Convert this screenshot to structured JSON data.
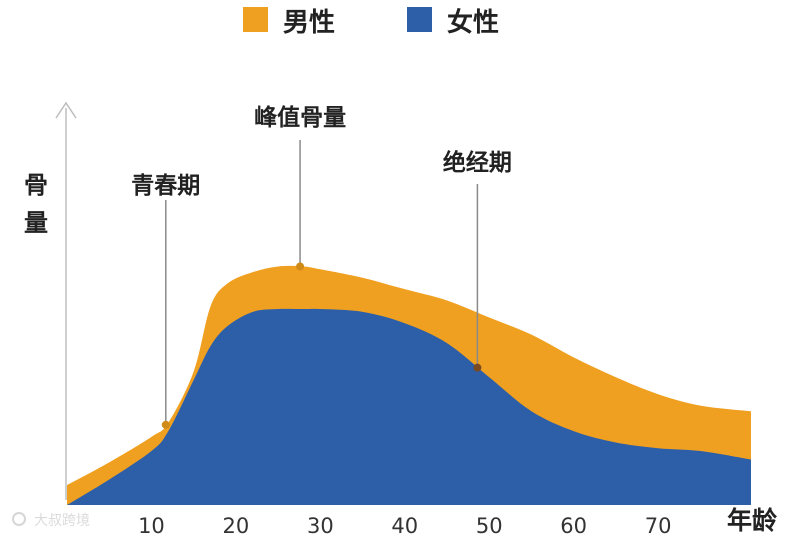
{
  "chart_data": {
    "type": "area",
    "title": "",
    "ylabel": "骨量",
    "xlabel": "年龄",
    "x_ticks": [
      10,
      20,
      30,
      40,
      50,
      60,
      70
    ],
    "xlim": [
      0,
      81
    ],
    "ylim": [
      0,
      100
    ],
    "legend": {
      "placement": "top",
      "entries": [
        {
          "label": "男性",
          "color": "#f0a020"
        },
        {
          "label": "女性",
          "color": "#2d5fa8"
        }
      ]
    },
    "series": [
      {
        "name": "男性",
        "color": "#f0a020",
        "x": [
          0,
          5,
          10,
          12,
          15,
          17,
          19,
          22,
          25,
          28,
          30,
          35,
          40,
          45,
          50,
          55,
          60,
          65,
          70,
          75,
          81
        ],
        "values": [
          7,
          15,
          24,
          29,
          47,
          70,
          78,
          82,
          84,
          84,
          83,
          80,
          76,
          72,
          66,
          60,
          52,
          45,
          39,
          35,
          33
        ]
      },
      {
        "name": "女性",
        "color": "#2d5fa8",
        "x": [
          0,
          5,
          10,
          12,
          15,
          17,
          19,
          22,
          25,
          28,
          30,
          35,
          40,
          45,
          50,
          55,
          60,
          65,
          70,
          75,
          81
        ],
        "values": [
          0,
          9,
          19,
          26,
          44,
          56,
          63,
          68,
          69,
          69,
          69,
          68,
          64,
          57,
          45,
          33,
          26,
          22,
          20,
          19,
          16
        ]
      }
    ],
    "annotations": [
      {
        "text": "青春期",
        "x": 11.7,
        "series": "男性"
      },
      {
        "text": "峰值骨量",
        "x": 27.6,
        "series": "男性"
      },
      {
        "text": "绝经期",
        "x": 48.6,
        "series": "女性"
      }
    ]
  },
  "watermark": "大叔跨境"
}
